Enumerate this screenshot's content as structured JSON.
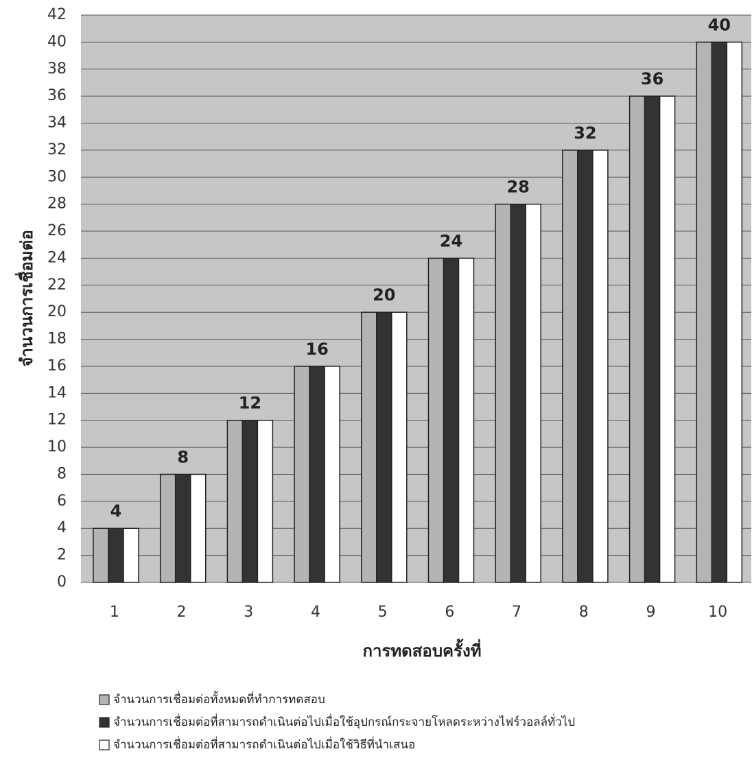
{
  "chart_data": {
    "type": "bar",
    "xlabel": "การทดสอบครั้งที่",
    "ylabel": "จำนวนการเชื่อมต่อ",
    "categories": [
      "1",
      "2",
      "3",
      "4",
      "5",
      "6",
      "7",
      "8",
      "9",
      "10"
    ],
    "series": [
      {
        "name": "จำนวนการเชื่อมต่อทั้งหมดที่ทำการทดสอบ",
        "color": "#b4b4b4",
        "values": [
          4,
          8,
          12,
          16,
          20,
          24,
          28,
          32,
          36,
          40
        ]
      },
      {
        "name": "จำนวนการเชื่อมต่อที่สามารถดำเนินต่อไปเมื่อใช้อุปกรณ์กระจายโหลดระหว่างไฟร์วอลล์ทั่วไป",
        "color": "#333333",
        "values": [
          4,
          8,
          12,
          16,
          20,
          24,
          28,
          32,
          36,
          40
        ]
      },
      {
        "name": "จำนวนการเชื่อมต่อที่สามารถดำเนินต่อไปเมื่อใช้วิธีที่นำเสนอ",
        "color": "#ffffff",
        "values": [
          4,
          8,
          12,
          16,
          20,
          24,
          28,
          32,
          36,
          40
        ]
      }
    ],
    "ylim": [
      0,
      42
    ],
    "yticks": [
      0,
      2,
      4,
      6,
      8,
      10,
      12,
      14,
      16,
      18,
      20,
      22,
      24,
      26,
      28,
      30,
      32,
      34,
      36,
      38,
      40,
      42
    ],
    "grid": true
  }
}
